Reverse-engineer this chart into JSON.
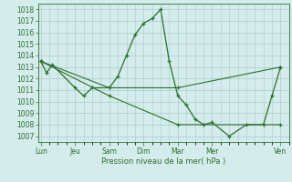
{
  "xlabel": "Pression niveau de la mer( hPa )",
  "bg_color": "#d4ecec",
  "grid_color": "#aacccc",
  "line_color": "#2d6e2d",
  "ylim": [
    1006.5,
    1018.5
  ],
  "yticks": [
    1007,
    1008,
    1009,
    1010,
    1011,
    1012,
    1013,
    1014,
    1015,
    1016,
    1017,
    1018
  ],
  "day_labels": [
    "Lun",
    "Jeu",
    "Sam",
    "Dim",
    "Mar",
    "Mer",
    "Ven"
  ],
  "day_positions": [
    0,
    24,
    48,
    72,
    96,
    120,
    168
  ],
  "xlim": [
    -2,
    174
  ],
  "series1_x": [
    0,
    4,
    8,
    24,
    30,
    36,
    48,
    54,
    60,
    66,
    72,
    78,
    84,
    90,
    96,
    102,
    108,
    114,
    120,
    132,
    144,
    156,
    162,
    168
  ],
  "series1_y": [
    1013.5,
    1012.5,
    1013.2,
    1011.2,
    1010.5,
    1011.2,
    1011.2,
    1012.2,
    1014.0,
    1015.8,
    1016.8,
    1017.2,
    1018.0,
    1013.5,
    1010.5,
    1009.7,
    1008.5,
    1008.0,
    1008.2,
    1007.0,
    1008.0,
    1008.0,
    1010.5,
    1013.0
  ],
  "series2_x": [
    0,
    48,
    96,
    168
  ],
  "series2_y": [
    1013.5,
    1011.2,
    1011.2,
    1013.0
  ],
  "series3_x": [
    0,
    48,
    96,
    168
  ],
  "series3_y": [
    1013.5,
    1010.5,
    1008.0,
    1008.0
  ]
}
